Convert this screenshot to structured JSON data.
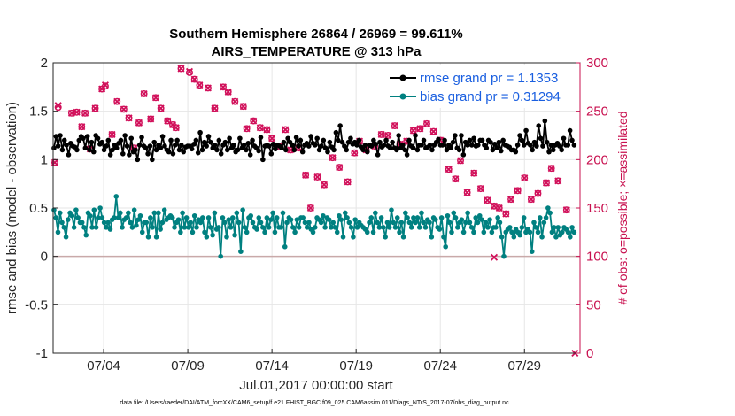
{
  "chart_data": {
    "type": "line",
    "title": "Southern Hemisphere 26864 / 26969 = 99.611%",
    "subtitle": "AIRS_TEMPERATURE @ 313 hPa",
    "xlabel": "Jul.01,2017 00:00:00 start",
    "ylabel": "rmse and bias (model - observation)",
    "y2label": "# of obs: o=possible; ×=assimilated",
    "footer": "data file: /Users/raeder/DAI/ATM_forcXX/CAM6_setup/f.e21.FHIST_BGC.f09_025.CAM6assim.011/Diags_NTrS_2017-07/obs_diag_output.nc",
    "xlim": [
      1,
      32.3
    ],
    "ylim": [
      -1,
      2
    ],
    "y2lim": [
      0,
      300
    ],
    "x_ticks": [
      4,
      9,
      14,
      19,
      24,
      29
    ],
    "x_tick_labels": [
      "07/04",
      "07/09",
      "07/14",
      "07/19",
      "07/24",
      "07/29"
    ],
    "y_tick_labels": [
      "2",
      "1.5",
      "1",
      "0.5",
      "0",
      "-0.5",
      "-1"
    ],
    "y2_tick_labels": [
      "300",
      "250",
      "200",
      "150",
      "100",
      "50",
      "0"
    ],
    "grid": true,
    "legend_position": "top-right",
    "colors": {
      "rmse": "#000000",
      "bias": "#008080",
      "obs": "#d1105a",
      "zero": "#c9a9a9"
    },
    "series": [
      {
        "name": "rmse grand pr = 1.1353",
        "axis": "left",
        "values": [
          1.12,
          1.24,
          1.14,
          1.25,
          1.1,
          1.2,
          1.15,
          1.05,
          1.17,
          1.14,
          1.13,
          1.1,
          1.2,
          1.24,
          1.22,
          1.12,
          1.24,
          1.1,
          1.18,
          1.08,
          1.25,
          1.22,
          1.16,
          1.18,
          1.1,
          1.14,
          1.2,
          1.05,
          1.1,
          1.15,
          1.12,
          1.17,
          1.2,
          1.06,
          1.25,
          1.14,
          1.05,
          1.22,
          1.08,
          1.1,
          1.0,
          1.15,
          1.23,
          1.14,
          1.12,
          1.06,
          1.14,
          1.0,
          1.18,
          1.1,
          1.15,
          1.12,
          1.24,
          1.14,
          1.1,
          1.08,
          1.2,
          1.06,
          1.15,
          1.2,
          1.1,
          1.15,
          1.08,
          1.13,
          1.14,
          1.14,
          1.11,
          1.16,
          1.2,
          1.07,
          1.28,
          1.1,
          1.18,
          1.14,
          1.24,
          1.18,
          1.12,
          1.15,
          1.1,
          1.2,
          1.06,
          1.15,
          1.18,
          1.1,
          1.22,
          1.12,
          1.15,
          1.08,
          1.1,
          1.22,
          1.12,
          1.15,
          1.1,
          1.17,
          1.05,
          1.2,
          1.14,
          1.12,
          1.09,
          1.23,
          1.0,
          1.14,
          1.15,
          1.14,
          1.06,
          1.16,
          1.11,
          1.15,
          1.14,
          1.12,
          1.18,
          1.1,
          1.22,
          1.18,
          1.15,
          1.1,
          1.23,
          1.14,
          1.2,
          1.08,
          1.15,
          1.17,
          1.14,
          1.24,
          1.17,
          1.15,
          1.22,
          1.1,
          1.14,
          1.2,
          1.12,
          1.08,
          1.18,
          1.13,
          1.1,
          1.28,
          1.2,
          1.35,
          1.18,
          1.14,
          1.1,
          1.18,
          1.22,
          1.16,
          1.18,
          1.15,
          1.2,
          1.13,
          1.1,
          1.15,
          1.08,
          1.15,
          1.14,
          1.2,
          1.16,
          1.05,
          1.18,
          1.13,
          1.15,
          1.2,
          1.14,
          1.12,
          1.18,
          1.12,
          1.1,
          1.25,
          1.12,
          1.15,
          1.1,
          1.05,
          1.2,
          1.14,
          1.12,
          1.25,
          1.1,
          1.15,
          1.15,
          1.2,
          1.12,
          1.13,
          1.15,
          1.1,
          1.15,
          1.18,
          1.21,
          1.15,
          1.15,
          1.2,
          1.1,
          1.15,
          1.12,
          1.18,
          1.25,
          1.12,
          1.1,
          1.25,
          1.05,
          1.18,
          1.15,
          1.2,
          1.15,
          1.22,
          1.14,
          1.15,
          1.2,
          1.2,
          1.15,
          1.12,
          1.2,
          1.18,
          1.1,
          1.16,
          1.12,
          1.18,
          1.09,
          1.2,
          1.15,
          1.14,
          1.13,
          1.1,
          1.1,
          1.08,
          1.15,
          1.25,
          1.2,
          1.15,
          1.3,
          1.17,
          1.15,
          1.1,
          1.18,
          1.14,
          1.35,
          1.22,
          1.14,
          1.4,
          1.18,
          1.08,
          1.15,
          1.1,
          1.15,
          1.17,
          1.14,
          1.1,
          1.22,
          1.15,
          1.15,
          1.3,
          1.2,
          1.15
        ]
      },
      {
        "name": "bias grand pr = 0.31294",
        "axis": "left",
        "values": [
          0.48,
          0.4,
          0.25,
          0.45,
          0.35,
          0.3,
          0.2,
          0.38,
          0.45,
          0.42,
          0.3,
          0.48,
          0.4,
          0.35,
          0.35,
          0.3,
          0.22,
          0.45,
          0.42,
          0.3,
          0.48,
          0.3,
          0.4,
          0.5,
          0.4,
          0.35,
          0.3,
          0.35,
          0.28,
          0.38,
          0.4,
          0.62,
          0.4,
          0.45,
          0.3,
          0.38,
          0.4,
          0.45,
          0.35,
          0.3,
          0.48,
          0.32,
          0.38,
          0.42,
          0.25,
          0.35,
          0.35,
          0.2,
          0.4,
          0.3,
          0.45,
          0.2,
          0.45,
          0.28,
          0.35,
          0.48,
          0.38,
          0.4,
          0.42,
          0.4,
          0.3,
          0.35,
          0.38,
          0.25,
          0.45,
          0.3,
          0.4,
          0.3,
          0.35,
          0.25,
          0.42,
          0.3,
          0.38,
          0.35,
          0.4,
          0.25,
          0.2,
          0.4,
          0.3,
          0.22,
          0.45,
          0.28,
          0.3,
          0.0,
          0.4,
          0.35,
          0.2,
          0.38,
          0.3,
          0.4,
          0.22,
          0.45,
          0.35,
          0.05,
          0.48,
          0.3,
          0.25,
          0.4,
          0.42,
          0.35,
          0.3,
          0.28,
          0.4,
          0.35,
          0.3,
          0.25,
          0.4,
          0.3,
          0.38,
          0.45,
          0.25,
          0.4,
          0.3,
          0.3,
          0.45,
          0.1,
          0.35,
          0.4,
          0.38,
          0.3,
          0.25,
          0.38,
          0.3,
          0.4,
          0.4,
          0.35,
          0.3,
          0.35,
          0.28,
          0.25,
          0.3,
          0.4,
          0.38,
          0.35,
          0.42,
          0.3,
          0.4,
          0.38,
          0.3,
          0.35,
          0.3,
          0.25,
          0.42,
          0.38,
          0.2,
          0.45,
          0.4,
          0.35,
          0.3,
          0.2,
          0.38,
          0.3,
          0.35,
          0.32,
          0.3,
          0.28,
          0.25,
          0.35,
          0.4,
          0.25,
          0.45,
          0.35,
          0.3,
          0.4,
          0.3,
          0.2,
          0.35,
          0.3,
          0.48,
          0.35,
          0.3,
          0.4,
          0.25,
          0.35,
          0.2,
          0.45,
          0.4,
          0.35,
          0.3,
          0.4,
          0.35,
          0.4,
          0.3,
          0.45,
          0.35,
          0.3,
          0.38,
          0.35,
          0.2,
          0.4,
          0.38,
          0.3,
          0.28,
          0.4,
          0.2,
          0.1,
          0.42,
          0.35,
          0.25,
          0.45,
          0.4,
          0.3,
          0.35,
          0.38,
          0.25,
          0.35,
          0.45,
          0.35,
          0.3,
          0.25,
          0.4,
          0.35,
          0.42,
          0.38,
          0.25,
          0.35,
          0.3,
          0.38,
          0.25,
          0.3,
          0.3,
          0.4,
          0.35,
          0.2,
          0.0,
          0.25,
          0.28,
          0.3,
          0.25,
          0.2,
          0.28,
          0.25,
          0.22,
          0.3,
          0.4,
          0.25,
          0.28,
          0.25,
          0.05,
          0.35,
          0.3,
          0.25,
          0.4,
          0.2,
          0.35,
          0.4,
          0.5,
          0.45,
          0.25,
          0.3,
          0.2,
          0.3,
          0.22,
          0.25,
          0.3,
          0.28,
          0.25,
          0.2,
          0.3,
          0.25
        ]
      },
      {
        "name": "# of obs possible",
        "axis": "right",
        "marker": "o",
        "points": [
          [
            1.1,
            197
          ],
          [
            1.3,
            254
          ],
          [
            2.1,
            248
          ],
          [
            2.4,
            249
          ],
          [
            2.7,
            234
          ],
          [
            2.9,
            248
          ],
          [
            3.2,
            211
          ],
          [
            3.5,
            253
          ],
          [
            3.9,
            273
          ],
          [
            4.1,
            276
          ],
          [
            4.5,
            226
          ],
          [
            4.8,
            260
          ],
          [
            5.2,
            252
          ],
          [
            5.5,
            243
          ],
          [
            5.8,
            212
          ],
          [
            6.1,
            238
          ],
          [
            6.4,
            268
          ],
          [
            6.8,
            242
          ],
          [
            7.1,
            264
          ],
          [
            7.4,
            253
          ],
          [
            7.8,
            240
          ],
          [
            8.1,
            236
          ],
          [
            8.3,
            233
          ],
          [
            8.6,
            294
          ],
          [
            9.1,
            290
          ],
          [
            9.4,
            283
          ],
          [
            9.7,
            277
          ],
          [
            10.2,
            274
          ],
          [
            10.6,
            253
          ],
          [
            11.1,
            275
          ],
          [
            11.4,
            270
          ],
          [
            11.8,
            260
          ],
          [
            12.3,
            255
          ],
          [
            12.5,
            232
          ],
          [
            12.9,
            240
          ],
          [
            13.3,
            233
          ],
          [
            13.7,
            231
          ],
          [
            14.0,
            222
          ],
          [
            14.4,
            214
          ],
          [
            14.8,
            231
          ],
          [
            15.1,
            210
          ],
          [
            15.6,
            212
          ],
          [
            16.0,
            184
          ],
          [
            16.3,
            150
          ],
          [
            16.7,
            182
          ],
          [
            17.1,
            174
          ],
          [
            17.6,
            202
          ],
          [
            18.0,
            192
          ],
          [
            18.5,
            177
          ],
          [
            18.9,
            207
          ],
          [
            19.2,
            219
          ],
          [
            19.6,
            210
          ],
          [
            20.1,
            214
          ],
          [
            20.5,
            226
          ],
          [
            20.9,
            225
          ],
          [
            21.3,
            235
          ],
          [
            21.6,
            216
          ],
          [
            22.0,
            219
          ],
          [
            22.4,
            230
          ],
          [
            22.8,
            232
          ],
          [
            23.2,
            237
          ],
          [
            23.6,
            229
          ],
          [
            24.0,
            220
          ],
          [
            24.5,
            190
          ],
          [
            24.9,
            180
          ],
          [
            25.2,
            199
          ],
          [
            25.6,
            166
          ],
          [
            26.0,
            186
          ],
          [
            26.4,
            170
          ],
          [
            26.8,
            158
          ],
          [
            27.2,
            152
          ],
          [
            27.5,
            150
          ],
          [
            27.9,
            144
          ],
          [
            28.2,
            159
          ],
          [
            28.6,
            168
          ],
          [
            29.0,
            181
          ],
          [
            29.4,
            159
          ],
          [
            29.8,
            165
          ],
          [
            30.3,
            176
          ],
          [
            30.6,
            191
          ],
          [
            31.0,
            178
          ],
          [
            31.5,
            148
          ]
        ]
      },
      {
        "name": "# of obs assimilated",
        "axis": "right",
        "marker": "x",
        "points": [
          [
            1.1,
            197
          ],
          [
            1.3,
            256
          ],
          [
            2.1,
            248
          ],
          [
            2.4,
            249
          ],
          [
            2.7,
            234
          ],
          [
            2.9,
            248
          ],
          [
            3.2,
            211
          ],
          [
            3.5,
            253
          ],
          [
            3.9,
            273
          ],
          [
            4.1,
            277
          ],
          [
            4.5,
            226
          ],
          [
            4.8,
            260
          ],
          [
            5.2,
            252
          ],
          [
            5.5,
            243
          ],
          [
            5.8,
            212
          ],
          [
            6.1,
            238
          ],
          [
            6.4,
            268
          ],
          [
            6.8,
            242
          ],
          [
            7.1,
            264
          ],
          [
            7.4,
            253
          ],
          [
            7.8,
            240
          ],
          [
            8.1,
            236
          ],
          [
            8.3,
            233
          ],
          [
            8.6,
            294
          ],
          [
            9.1,
            291
          ],
          [
            9.4,
            283
          ],
          [
            9.7,
            277
          ],
          [
            10.2,
            274
          ],
          [
            10.6,
            253
          ],
          [
            11.1,
            275
          ],
          [
            11.4,
            270
          ],
          [
            11.8,
            260
          ],
          [
            12.3,
            255
          ],
          [
            12.5,
            232
          ],
          [
            12.9,
            240
          ],
          [
            13.3,
            233
          ],
          [
            13.7,
            231
          ],
          [
            14.0,
            222
          ],
          [
            14.4,
            214
          ],
          [
            14.8,
            231
          ],
          [
            15.1,
            210
          ],
          [
            15.6,
            212
          ],
          [
            16.0,
            184
          ],
          [
            16.3,
            150
          ],
          [
            16.7,
            182
          ],
          [
            17.1,
            174
          ],
          [
            17.6,
            202
          ],
          [
            18.0,
            192
          ],
          [
            18.5,
            177
          ],
          [
            18.9,
            207
          ],
          [
            19.2,
            219
          ],
          [
            19.6,
            210
          ],
          [
            20.1,
            214
          ],
          [
            20.5,
            226
          ],
          [
            20.9,
            225
          ],
          [
            21.3,
            235
          ],
          [
            21.6,
            216
          ],
          [
            22.0,
            219
          ],
          [
            22.4,
            230
          ],
          [
            22.8,
            232
          ],
          [
            23.2,
            237
          ],
          [
            23.6,
            229
          ],
          [
            24.0,
            220
          ],
          [
            24.5,
            190
          ],
          [
            24.9,
            180
          ],
          [
            25.2,
            199
          ],
          [
            25.6,
            166
          ],
          [
            26.0,
            186
          ],
          [
            26.4,
            170
          ],
          [
            26.8,
            158
          ],
          [
            27.2,
            152
          ],
          [
            27.5,
            150
          ],
          [
            27.9,
            144
          ],
          [
            28.2,
            159
          ],
          [
            28.6,
            168
          ],
          [
            29.0,
            181
          ],
          [
            29.4,
            159
          ],
          [
            29.8,
            165
          ],
          [
            30.3,
            176
          ],
          [
            30.6,
            191
          ],
          [
            31.0,
            178
          ],
          [
            31.5,
            148
          ],
          [
            27.2,
            99
          ],
          [
            32.0,
            0
          ]
        ]
      }
    ]
  }
}
